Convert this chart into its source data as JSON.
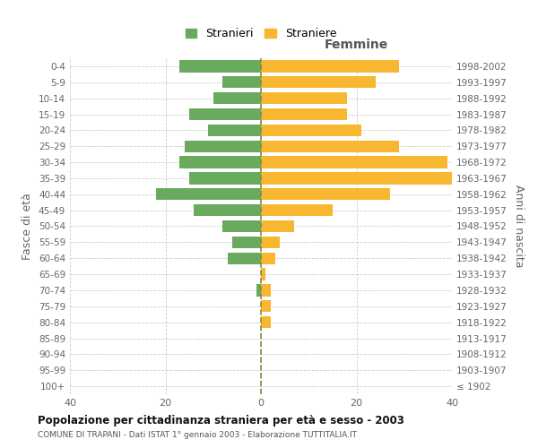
{
  "age_groups": [
    "100+",
    "95-99",
    "90-94",
    "85-89",
    "80-84",
    "75-79",
    "70-74",
    "65-69",
    "60-64",
    "55-59",
    "50-54",
    "45-49",
    "40-44",
    "35-39",
    "30-34",
    "25-29",
    "20-24",
    "15-19",
    "10-14",
    "5-9",
    "0-4"
  ],
  "birth_years": [
    "≤ 1902",
    "1903-1907",
    "1908-1912",
    "1913-1917",
    "1918-1922",
    "1923-1927",
    "1928-1932",
    "1933-1937",
    "1938-1942",
    "1943-1947",
    "1948-1952",
    "1953-1957",
    "1958-1962",
    "1963-1967",
    "1968-1972",
    "1973-1977",
    "1978-1982",
    "1983-1987",
    "1988-1992",
    "1993-1997",
    "1998-2002"
  ],
  "males": [
    0,
    0,
    0,
    0,
    0,
    0,
    1,
    0,
    7,
    6,
    8,
    14,
    22,
    15,
    17,
    16,
    11,
    15,
    10,
    8,
    17
  ],
  "females": [
    0,
    0,
    0,
    0,
    2,
    2,
    2,
    1,
    3,
    4,
    7,
    15,
    27,
    40,
    39,
    29,
    21,
    18,
    18,
    24,
    29
  ],
  "male_color": "#6aaa5e",
  "female_color": "#f7b731",
  "title": "Popolazione per cittadinanza straniera per età e sesso - 2003",
  "subtitle": "COMUNE DI TRAPANI - Dati ISTAT 1° gennaio 2003 - Elaborazione TUTTITALIA.IT",
  "xlabel_right": "Femmine",
  "ylabel_left": "Fasce di età",
  "ylabel_right": "Anni di nascita",
  "legend_male": "Stranieri",
  "legend_female": "Straniere",
  "xlim": 40,
  "grid_color": "#cccccc",
  "background_color": "#ffffff",
  "bar_height": 0.75,
  "dashed_line_color": "#8a8a44"
}
